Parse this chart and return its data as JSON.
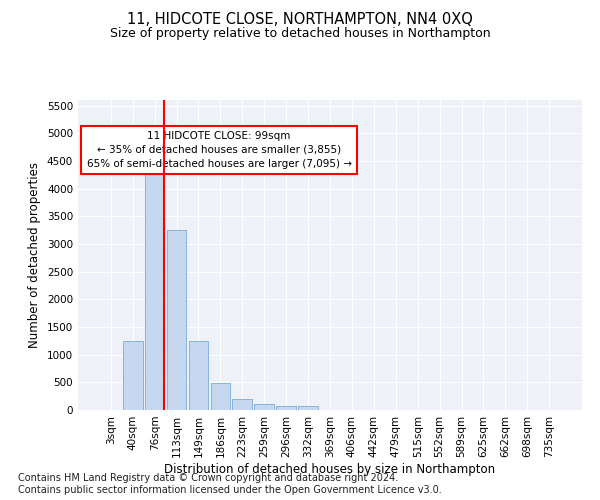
{
  "title": "11, HIDCOTE CLOSE, NORTHAMPTON, NN4 0XQ",
  "subtitle": "Size of property relative to detached houses in Northampton",
  "xlabel": "Distribution of detached houses by size in Northampton",
  "ylabel": "Number of detached properties",
  "categories": [
    "3sqm",
    "40sqm",
    "76sqm",
    "113sqm",
    "149sqm",
    "186sqm",
    "223sqm",
    "259sqm",
    "296sqm",
    "332sqm",
    "369sqm",
    "406sqm",
    "442sqm",
    "479sqm",
    "515sqm",
    "552sqm",
    "589sqm",
    "625sqm",
    "662sqm",
    "698sqm",
    "735sqm"
  ],
  "values": [
    0,
    1250,
    4300,
    3250,
    1250,
    480,
    200,
    100,
    80,
    75,
    0,
    0,
    0,
    0,
    0,
    0,
    0,
    0,
    0,
    0,
    0
  ],
  "bar_color": "#c5d8f0",
  "bar_edge_color": "#7aabdb",
  "vline_x_index": 2.45,
  "vline_color": "red",
  "annotation_line1": "11 HIDCOTE CLOSE: 99sqm",
  "annotation_line2": "← 35% of detached houses are smaller (3,855)",
  "annotation_line3": "65% of semi-detached houses are larger (7,095) →",
  "annotation_box_color": "white",
  "annotation_box_edge": "red",
  "ylim": [
    0,
    5600
  ],
  "yticks": [
    0,
    500,
    1000,
    1500,
    2000,
    2500,
    3000,
    3500,
    4000,
    4500,
    5000,
    5500
  ],
  "footer_line1": "Contains HM Land Registry data © Crown copyright and database right 2024.",
  "footer_line2": "Contains public sector information licensed under the Open Government Licence v3.0.",
  "background_color": "#eef2f8",
  "title_fontsize": 10.5,
  "subtitle_fontsize": 9,
  "axis_label_fontsize": 8.5,
  "tick_fontsize": 7.5,
  "footer_fontsize": 7
}
